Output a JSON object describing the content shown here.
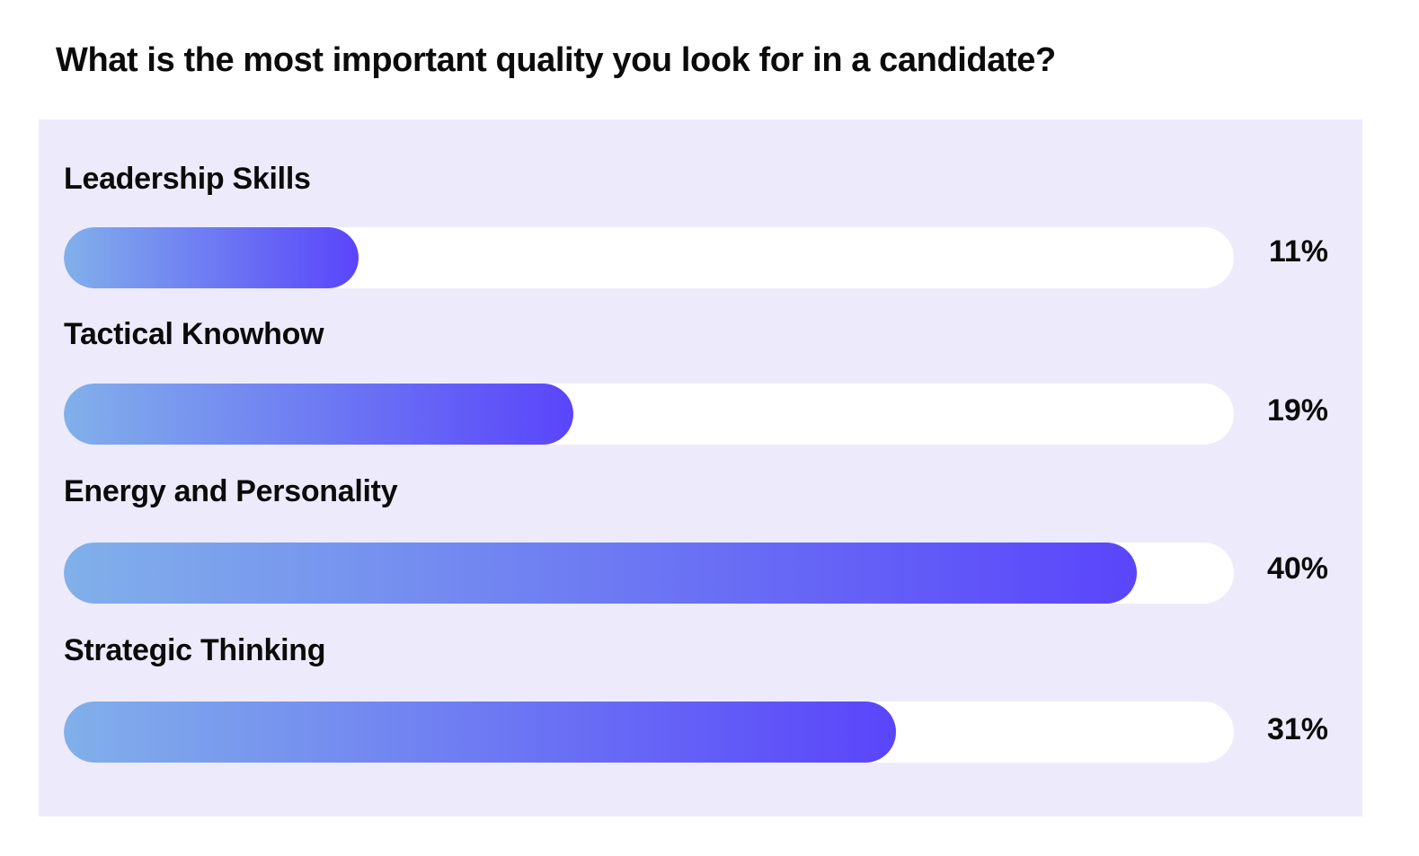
{
  "chart_data": {
    "type": "bar",
    "orientation": "horizontal",
    "title": "What is the most important quality you look for in a candidate?",
    "categories": [
      "Leadership Skills",
      "Tactical Knowhow",
      "Energy and Personality",
      "Strategic Thinking"
    ],
    "values": [
      11,
      19,
      40,
      31
    ],
    "value_labels": [
      "11%",
      "19%",
      "40%",
      "31%"
    ],
    "unit": "%",
    "xlim": [
      0,
      43.6
    ],
    "grid": false,
    "legend": "none",
    "colors": {
      "gradient_start": "#81b0ea",
      "gradient_end": "#5a45fb",
      "track": "#ffffff",
      "panel": "#edebfb"
    }
  }
}
